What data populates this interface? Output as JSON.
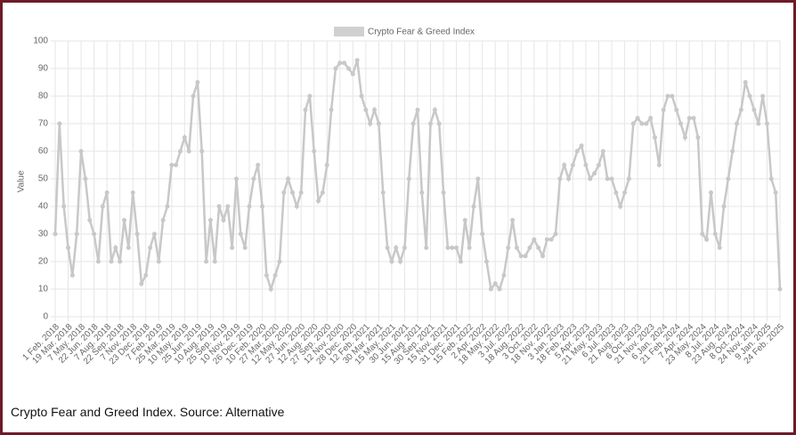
{
  "chart_data": {
    "type": "line",
    "legend": "Crypto Fear & Greed Index",
    "ylabel": "Value",
    "caption": "Crypto Fear and Greed Index. Source: Alternative",
    "color": "#c8c8c8",
    "grid": true,
    "legend_position": "top",
    "ylim": [
      0,
      100
    ],
    "yticks": [
      0,
      10,
      20,
      30,
      40,
      50,
      60,
      70,
      80,
      90,
      100
    ],
    "categories": [
      "1 Feb. 2018",
      null,
      null,
      "19 Mar. 2018",
      null,
      null,
      "7 May. 2018",
      null,
      null,
      "22 Jun. 2018",
      null,
      null,
      "7 Aug. 2018",
      null,
      null,
      "22 Sep. 2018",
      null,
      null,
      "7 Nov. 2018",
      null,
      null,
      "23 Dec. 2018",
      null,
      null,
      "7 Feb. 2019",
      null,
      null,
      "25 Mar. 2019",
      null,
      null,
      "10 May. 2019",
      null,
      null,
      "25 Jun. 2019",
      null,
      null,
      "10 Aug. 2019",
      null,
      null,
      "25 Sep. 2019",
      null,
      null,
      "10 Nov. 2019",
      null,
      null,
      "26 Dec. 2019",
      null,
      null,
      "10 Feb. 2020",
      null,
      null,
      "27 Mar. 2020",
      null,
      null,
      "12 May. 2020",
      null,
      null,
      "27 Jun. 2020",
      null,
      null,
      "12 Aug. 2020",
      null,
      null,
      "27 Sep. 2020",
      null,
      null,
      "12 Nov. 2020",
      null,
      null,
      "28 Dec. 2020",
      null,
      null,
      "12 Feb. 2021",
      null,
      null,
      "30 Mar. 2021",
      null,
      null,
      "15 May. 2021",
      null,
      null,
      "30 Jun. 2021",
      null,
      null,
      "15 Aug. 2021",
      null,
      null,
      "30 Sep. 2021",
      null,
      null,
      "15 Nov. 2021",
      null,
      null,
      "31 Dec. 2021",
      null,
      null,
      "15 Feb. 2022",
      null,
      null,
      "2 Apr. 2022",
      null,
      null,
      "18 May. 2022",
      null,
      null,
      "3 Jul. 2022",
      null,
      null,
      "18 Aug. 2022",
      null,
      null,
      "3 Oct. 2022",
      null,
      null,
      "18 Nov. 2022",
      null,
      null,
      "3 Jan. 2023",
      null,
      null,
      "18 Feb. 2023",
      null,
      null,
      "5 Apr. 2023",
      null,
      null,
      "21 May. 2023",
      null,
      null,
      "6 Jul. 2023",
      null,
      null,
      "21 Aug. 2023",
      null,
      null,
      "6 Oct. 2023",
      null,
      null,
      "21 Nov. 2023",
      null,
      null,
      "6 Jan. 2024",
      null,
      null,
      "21 Feb. 2024",
      null,
      null,
      "7 Apr. 2024",
      null,
      null,
      "23 May. 2024",
      null,
      null,
      "8 Jul. 2024",
      null,
      null,
      "23 Aug. 2024",
      null,
      null,
      "8 Oct. 2024",
      null,
      null,
      "24 Nov. 2024",
      null,
      null,
      "9 Jan. 2025",
      null,
      null,
      "24 Feb. 2025"
    ],
    "values": [
      30,
      70,
      40,
      25,
      15,
      30,
      60,
      50,
      35,
      30,
      20,
      40,
      45,
      20,
      25,
      20,
      35,
      25,
      45,
      30,
      12,
      15,
      25,
      30,
      20,
      35,
      40,
      55,
      55,
      60,
      65,
      60,
      80,
      85,
      60,
      20,
      35,
      20,
      40,
      35,
      40,
      25,
      50,
      30,
      25,
      40,
      50,
      55,
      40,
      15,
      10,
      15,
      20,
      45,
      50,
      45,
      40,
      45,
      75,
      80,
      60,
      42,
      45,
      55,
      75,
      90,
      92,
      92,
      90,
      88,
      93,
      80,
      75,
      70,
      75,
      70,
      45,
      25,
      20,
      25,
      20,
      25,
      50,
      70,
      75,
      45,
      25,
      70,
      75,
      70,
      45,
      25,
      25,
      25,
      20,
      35,
      25,
      40,
      50,
      30,
      20,
      10,
      12,
      10,
      15,
      25,
      35,
      25,
      22,
      22,
      25,
      28,
      25,
      22,
      28,
      28,
      30,
      50,
      55,
      50,
      55,
      60,
      62,
      55,
      50,
      52,
      55,
      60,
      50,
      50,
      45,
      40,
      45,
      50,
      70,
      72,
      70,
      70,
      72,
      65,
      55,
      75,
      80,
      80,
      75,
      70,
      65,
      72,
      72,
      65,
      30,
      28,
      45,
      30,
      25,
      40,
      50,
      60,
      70,
      75,
      85,
      80,
      75,
      70,
      80,
      70,
      50,
      45,
      10
    ]
  }
}
